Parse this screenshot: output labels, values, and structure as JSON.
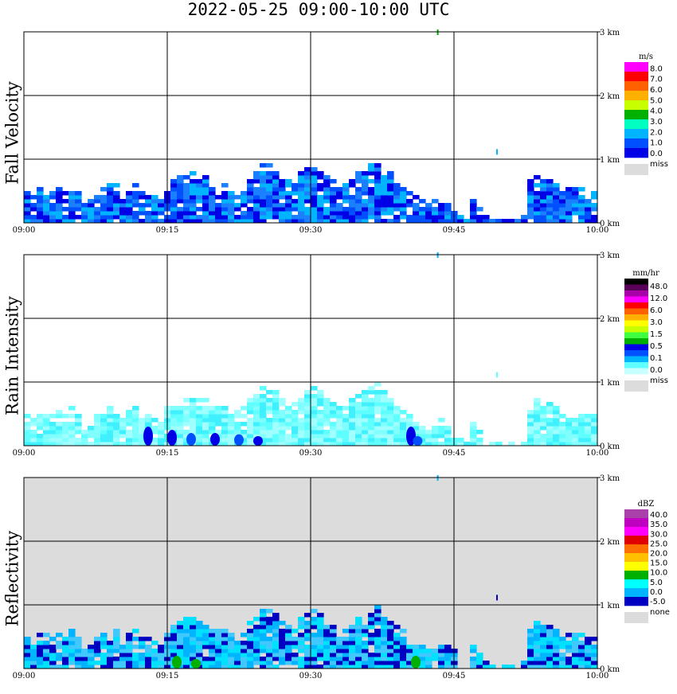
{
  "title": "2022-05-25   09:00-10:00 UTC",
  "colors": {
    "missing": "#dcdcdc",
    "grid": "#000000"
  },
  "chart_data": [
    {
      "type": "heatmap",
      "name": "Fall Velocity",
      "ylabel": "Fall Velocity",
      "xlabel": "",
      "x_ticks": [
        "09:00",
        "09:15",
        "09:30",
        "09:45",
        "10:00"
      ],
      "y_ticks": [
        "0 km",
        "1 km",
        "2 km",
        "3 km"
      ],
      "ylim": [
        0,
        3.5
      ],
      "xlim": [
        "09:00",
        "10:00"
      ],
      "legend": {
        "unit": "m/s",
        "labels": [
          "8.0",
          "7.0",
          "6.0",
          "5.0",
          "4.0",
          "3.0",
          "2.0",
          "1.0",
          "0.0"
        ],
        "colors": [
          "#ff00ff",
          "#ff0000",
          "#ff6000",
          "#ffb000",
          "#c8ff00",
          "#00b000",
          "#00ffc0",
          "#00b4ff",
          "#0050ff",
          "#0000e6"
        ],
        "missing_label": "miss"
      },
      "background": "#ffffff",
      "fill_colors": [
        "#0000e6",
        "#0050ff",
        "#1a80ff",
        "#00b4ff"
      ],
      "top_km": [
        0.48,
        0.45,
        0.55,
        0.58,
        0.52,
        0.55,
        0.5,
        0.62,
        0.48,
        0.3,
        0.38,
        0.5,
        0.55,
        0.62,
        0.6,
        0.52,
        0.58,
        0.6,
        0.55,
        0.48,
        0.45,
        0.4,
        0.62,
        0.7,
        0.75,
        0.8,
        0.82,
        0.78,
        0.72,
        0.65,
        0.62,
        0.6,
        0.55,
        0.58,
        0.65,
        0.72,
        0.8,
        0.92,
        0.95,
        0.9,
        0.78,
        0.7,
        0.68,
        0.8,
        0.88,
        0.92,
        0.85,
        0.78,
        0.7,
        0.65,
        0.6,
        0.75,
        0.82,
        0.9,
        0.95,
        0.98,
        0.88,
        0.8,
        0.7,
        0.6,
        0.52,
        0.42,
        0.35,
        0.3,
        0.35,
        0.42,
        0.38,
        0.32,
        0.1,
        0.15,
        0.4,
        0.25,
        0.12,
        0.08,
        0.06,
        0.05,
        0.05,
        0.05,
        0.15,
        0.7,
        0.72,
        0.7,
        0.68,
        0.62,
        0.6,
        0.55,
        0.58,
        0.55,
        0.52,
        0.48
      ],
      "sparse_points": [
        {
          "time_min": 43.3,
          "height_km": 3.0,
          "color": "#00b000"
        },
        {
          "time_min": 49.5,
          "height_km": 1.12,
          "color": "#00b4ff"
        }
      ]
    },
    {
      "type": "heatmap",
      "name": "Rain Intensity",
      "ylabel": "Rain Intensity",
      "xlabel": "",
      "x_ticks": [
        "09:00",
        "09:15",
        "09:30",
        "09:45",
        "10:00"
      ],
      "y_ticks": [
        "0 km",
        "1 km",
        "2 km",
        "3 km"
      ],
      "ylim": [
        0,
        3.5
      ],
      "xlim": [
        "09:00",
        "10:00"
      ],
      "legend": {
        "unit": "mm/hr",
        "labels": [
          "48.0",
          "12.0",
          "6.0",
          "3.0",
          "1.5",
          "0.5",
          "0.1",
          "0.0"
        ],
        "colors": [
          "#000000",
          "#5a005a",
          "#aa00aa",
          "#ff00ff",
          "#ff0000",
          "#ff6000",
          "#ffb000",
          "#ffff00",
          "#c8ff00",
          "#40ff40",
          "#00b000",
          "#0000e6",
          "#0050ff",
          "#00b4ff",
          "#60ffff",
          "#c8ffff"
        ],
        "missing_label": "miss"
      },
      "background": "#ffffff",
      "fill_colors": [
        "#60ffff",
        "#80ffff",
        "#a0ffff",
        "#40f0ff"
      ],
      "top_km": [
        0.48,
        0.45,
        0.55,
        0.58,
        0.52,
        0.55,
        0.5,
        0.62,
        0.48,
        0.3,
        0.38,
        0.5,
        0.55,
        0.62,
        0.6,
        0.52,
        0.58,
        0.6,
        0.55,
        0.48,
        0.45,
        0.4,
        0.62,
        0.7,
        0.75,
        0.8,
        0.82,
        0.78,
        0.72,
        0.65,
        0.62,
        0.6,
        0.55,
        0.58,
        0.65,
        0.72,
        0.8,
        0.92,
        0.95,
        0.9,
        0.78,
        0.7,
        0.68,
        0.8,
        0.88,
        0.92,
        0.85,
        0.78,
        0.7,
        0.65,
        0.6,
        0.75,
        0.82,
        0.9,
        0.95,
        0.98,
        0.88,
        0.8,
        0.7,
        0.6,
        0.52,
        0.42,
        0.35,
        0.3,
        0.35,
        0.42,
        0.38,
        0.32,
        0.1,
        0.15,
        0.4,
        0.25,
        0.12,
        0.08,
        0.06,
        0.05,
        0.05,
        0.05,
        0.15,
        0.7,
        0.72,
        0.7,
        0.68,
        0.62,
        0.6,
        0.55,
        0.58,
        0.55,
        0.52,
        0.48
      ],
      "intense_cores": [
        {
          "time_min": 13.0,
          "height_km": 0.3,
          "color": "#0000e6"
        },
        {
          "time_min": 15.5,
          "height_km": 0.25,
          "color": "#0000e6"
        },
        {
          "time_min": 17.5,
          "height_km": 0.2,
          "color": "#0050ff"
        },
        {
          "time_min": 20.0,
          "height_km": 0.2,
          "color": "#0000e6"
        },
        {
          "time_min": 22.5,
          "height_km": 0.18,
          "color": "#0050ff"
        },
        {
          "time_min": 24.5,
          "height_km": 0.15,
          "color": "#0000e6"
        },
        {
          "time_min": 40.5,
          "height_km": 0.3,
          "color": "#0000e6"
        },
        {
          "time_min": 41.2,
          "height_km": 0.15,
          "color": "#0050ff"
        }
      ],
      "sparse_points": [
        {
          "time_min": 43.3,
          "height_km": 3.0,
          "color": "#00b4ff"
        },
        {
          "time_min": 49.5,
          "height_km": 1.12,
          "color": "#60ffff"
        }
      ]
    },
    {
      "type": "heatmap",
      "name": "Reflectivity",
      "ylabel": "Reflectivity",
      "xlabel": "",
      "x_ticks": [
        "09:00",
        "09:15",
        "09:30",
        "09:45",
        "10:00"
      ],
      "y_ticks": [
        "0 km",
        "1 km",
        "2 km",
        "3 km"
      ],
      "ylim": [
        0,
        3.5
      ],
      "xlim": [
        "09:00",
        "10:00"
      ],
      "legend": {
        "unit": "dBZ",
        "labels": [
          "40.0",
          "35.0",
          "30.0",
          "25.0",
          "20.0",
          "15.0",
          "10.0",
          "5.0",
          "0.0",
          "-5.0"
        ],
        "colors": [
          "#aa40aa",
          "#c000c0",
          "#ff00ff",
          "#e00000",
          "#ff7000",
          "#ffc000",
          "#ffff00",
          "#00b000",
          "#00ffff",
          "#00b4ff",
          "#0000c0"
        ],
        "missing_label": "none"
      },
      "background": "#dcdcdc",
      "fill_colors": [
        "#00b4ff",
        "#40c8ff",
        "#00e0ff",
        "#0000c0"
      ],
      "top_km": [
        0.48,
        0.45,
        0.55,
        0.58,
        0.52,
        0.55,
        0.5,
        0.62,
        0.48,
        0.3,
        0.38,
        0.5,
        0.55,
        0.62,
        0.6,
        0.52,
        0.58,
        0.6,
        0.55,
        0.48,
        0.45,
        0.4,
        0.62,
        0.7,
        0.75,
        0.8,
        0.82,
        0.78,
        0.72,
        0.65,
        0.62,
        0.6,
        0.55,
        0.58,
        0.65,
        0.72,
        0.8,
        0.92,
        0.95,
        0.9,
        0.78,
        0.7,
        0.68,
        0.8,
        0.88,
        0.92,
        0.85,
        0.78,
        0.7,
        0.65,
        0.6,
        0.75,
        0.82,
        0.9,
        0.95,
        0.98,
        0.88,
        0.8,
        0.7,
        0.6,
        0.52,
        0.42,
        0.35,
        0.3,
        0.35,
        0.42,
        0.38,
        0.32,
        0.1,
        0.15,
        0.4,
        0.25,
        0.12,
        0.08,
        0.06,
        0.05,
        0.05,
        0.05,
        0.15,
        0.7,
        0.72,
        0.7,
        0.68,
        0.62,
        0.6,
        0.55,
        0.58,
        0.55,
        0.52,
        0.48
      ],
      "intense_cores": [
        {
          "time_min": 16.0,
          "height_km": 0.2,
          "color": "#00b000"
        },
        {
          "time_min": 18.0,
          "height_km": 0.15,
          "color": "#00b000"
        },
        {
          "time_min": 41.0,
          "height_km": 0.2,
          "color": "#00b000"
        }
      ],
      "sparse_points": [
        {
          "time_min": 43.3,
          "height_km": 3.0,
          "color": "#00b4ff"
        },
        {
          "time_min": 49.5,
          "height_km": 1.12,
          "color": "#0000c0"
        }
      ]
    }
  ]
}
